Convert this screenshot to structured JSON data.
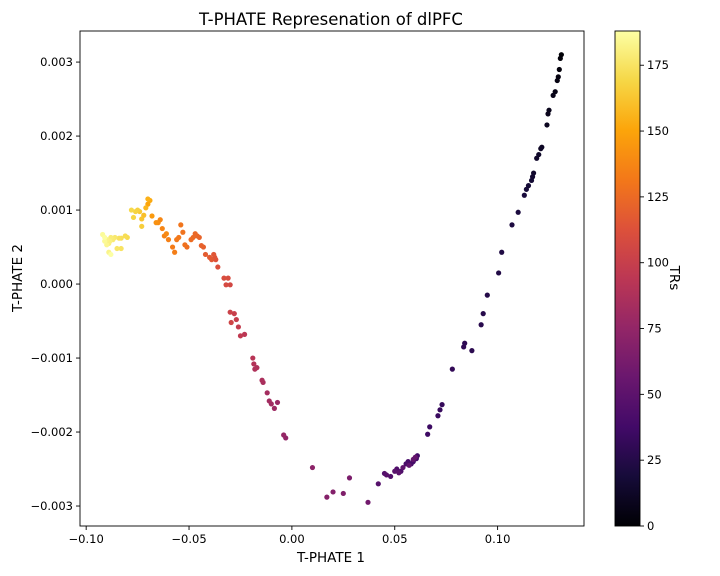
{
  "chart_data": {
    "type": "scatter",
    "title": "T-PHATE Represenation of dlPFC",
    "xlabel": "T-PHATE 1",
    "ylabel": "T-PHATE 2",
    "xlim": [
      -0.103,
      0.142
    ],
    "ylim": [
      -0.00327,
      0.00342
    ],
    "x_ticks": [
      -0.1,
      -0.05,
      0.0,
      0.05,
      0.1
    ],
    "x_tick_labels": [
      "−0.10",
      "−0.05",
      "0.00",
      "0.05",
      "0.10"
    ],
    "y_ticks": [
      -0.003,
      -0.002,
      -0.001,
      0.0,
      0.001,
      0.002,
      0.003
    ],
    "y_tick_labels": [
      "−0.003",
      "−0.002",
      "−0.001",
      "0.000",
      "0.001",
      "0.002",
      "0.003"
    ],
    "colormap": "inferno",
    "colorbar": {
      "label": "TRs",
      "range": [
        0,
        188
      ],
      "ticks": [
        0,
        25,
        50,
        75,
        100,
        125,
        150,
        175
      ],
      "tick_labels": [
        "0",
        "25",
        "50",
        "75",
        "100",
        "125",
        "150",
        "175"
      ]
    },
    "points": [
      [
        0.131,
        0.0031,
        1
      ],
      [
        0.1305,
        0.00305,
        2
      ],
      [
        0.13,
        0.0029,
        3
      ],
      [
        0.1295,
        0.0028,
        4
      ],
      [
        0.129,
        0.00275,
        5
      ],
      [
        0.128,
        0.0026,
        6
      ],
      [
        0.127,
        0.00255,
        7
      ],
      [
        0.125,
        0.00235,
        8
      ],
      [
        0.1245,
        0.0023,
        9
      ],
      [
        0.124,
        0.00215,
        10
      ],
      [
        0.1215,
        0.00185,
        11
      ],
      [
        0.121,
        0.00183,
        12
      ],
      [
        0.12,
        0.00175,
        13
      ],
      [
        0.119,
        0.0017,
        14
      ],
      [
        0.1175,
        0.0015,
        15
      ],
      [
        0.117,
        0.00145,
        16
      ],
      [
        0.1165,
        0.0014,
        17
      ],
      [
        0.115,
        0.00133,
        18
      ],
      [
        0.114,
        0.00128,
        19
      ],
      [
        0.113,
        0.0012,
        20
      ],
      [
        0.11,
        0.00097,
        21
      ],
      [
        0.107,
        0.0008,
        22
      ],
      [
        0.102,
        0.00043,
        23
      ],
      [
        0.1005,
        0.00015,
        24
      ],
      [
        0.095,
        -0.00015,
        25
      ],
      [
        0.093,
        -0.0004,
        26
      ],
      [
        0.092,
        -0.00055,
        27
      ],
      [
        0.0875,
        -0.0009,
        28
      ],
      [
        0.084,
        -0.0008,
        29
      ],
      [
        0.0835,
        -0.00085,
        30
      ],
      [
        0.078,
        -0.00115,
        31
      ],
      [
        0.073,
        -0.00163,
        32
      ],
      [
        0.072,
        -0.0017,
        33
      ],
      [
        0.071,
        -0.00178,
        34
      ],
      [
        0.067,
        -0.00193,
        35
      ],
      [
        0.066,
        -0.00203,
        36
      ],
      [
        0.061,
        -0.00232,
        37
      ],
      [
        0.0605,
        -0.00236,
        38
      ],
      [
        0.059,
        -0.0024,
        39
      ],
      [
        0.058,
        -0.00243,
        40
      ],
      [
        0.0565,
        -0.0024,
        41
      ],
      [
        0.0555,
        -0.00243,
        42
      ],
      [
        0.053,
        -0.00253,
        43
      ],
      [
        0.051,
        -0.0025,
        44
      ],
      [
        0.048,
        -0.0026,
        45
      ],
      [
        0.045,
        -0.00256,
        46
      ],
      [
        0.042,
        -0.0027,
        47
      ],
      [
        0.046,
        -0.00258,
        48
      ],
      [
        0.05,
        -0.00253,
        49
      ],
      [
        0.052,
        -0.00255,
        50
      ],
      [
        0.054,
        -0.00248,
        51
      ],
      [
        0.057,
        -0.00245,
        52
      ],
      [
        0.059,
        -0.00237,
        53
      ],
      [
        0.06,
        -0.00234,
        54
      ],
      [
        0.037,
        -0.00295,
        60
      ],
      [
        0.028,
        -0.00262,
        64
      ],
      [
        0.025,
        -0.00283,
        66
      ],
      [
        0.02,
        -0.00281,
        68
      ],
      [
        0.017,
        -0.00288,
        69
      ],
      [
        0.01,
        -0.00248,
        72
      ],
      [
        -0.003,
        -0.00208,
        74
      ],
      [
        -0.004,
        -0.00204,
        76
      ],
      [
        -0.007,
        -0.0016,
        78
      ],
      [
        -0.0085,
        -0.00168,
        80
      ],
      [
        -0.01,
        -0.00162,
        81
      ],
      [
        -0.011,
        -0.00158,
        82
      ],
      [
        -0.012,
        -0.00147,
        83
      ],
      [
        -0.014,
        -0.00133,
        85
      ],
      [
        -0.0145,
        -0.0013,
        86
      ],
      [
        -0.017,
        -0.00113,
        87
      ],
      [
        -0.018,
        -0.00115,
        88
      ],
      [
        -0.0185,
        -0.00108,
        90
      ],
      [
        -0.019,
        -0.001,
        92
      ],
      [
        -0.023,
        -0.00068,
        94
      ],
      [
        -0.025,
        -0.0007,
        96
      ],
      [
        -0.026,
        -0.00058,
        98
      ],
      [
        -0.027,
        -0.00048,
        99
      ],
      [
        -0.028,
        -0.0004,
        100
      ],
      [
        -0.03,
        -0.00038,
        102
      ],
      [
        -0.0295,
        -0.00052,
        104
      ],
      [
        -0.03,
        -1e-05,
        106
      ],
      [
        -0.032,
        -1e-05,
        108
      ],
      [
        -0.031,
        8e-05,
        109
      ],
      [
        -0.033,
        8e-05,
        110
      ],
      [
        -0.036,
        0.00023,
        111
      ],
      [
        -0.037,
        0.00033,
        113
      ],
      [
        -0.0375,
        0.00036,
        114
      ],
      [
        -0.038,
        0.0004,
        115
      ],
      [
        -0.039,
        0.00033,
        116
      ],
      [
        -0.04,
        0.00036,
        117
      ],
      [
        -0.042,
        0.0004,
        118
      ],
      [
        -0.043,
        0.0005,
        120
      ],
      [
        -0.044,
        0.00052,
        121
      ],
      [
        -0.045,
        0.00063,
        122
      ],
      [
        -0.046,
        0.00065,
        123
      ],
      [
        -0.047,
        0.00068,
        124
      ],
      [
        -0.048,
        0.00063,
        125
      ],
      [
        -0.049,
        0.0006,
        126
      ],
      [
        -0.051,
        0.0005,
        127
      ],
      [
        -0.052,
        0.00053,
        128
      ],
      [
        -0.053,
        0.0007,
        129
      ],
      [
        -0.054,
        0.0008,
        130
      ],
      [
        -0.055,
        0.00063,
        131
      ],
      [
        -0.056,
        0.0006,
        132
      ],
      [
        -0.058,
        0.0005,
        133
      ],
      [
        -0.057,
        0.00043,
        134
      ],
      [
        -0.06,
        0.0006,
        135
      ],
      [
        -0.062,
        0.00065,
        136
      ],
      [
        -0.063,
        0.00075,
        137
      ],
      [
        -0.064,
        0.00087,
        138
      ],
      [
        -0.061,
        0.00068,
        139
      ],
      [
        -0.065,
        0.00083,
        140
      ],
      [
        -0.066,
        0.00083,
        142
      ],
      [
        -0.068,
        0.00092,
        146
      ],
      [
        -0.07,
        0.00108,
        150
      ],
      [
        -0.069,
        0.00113,
        152
      ],
      [
        -0.07,
        0.00115,
        155
      ],
      [
        -0.071,
        0.00103,
        157
      ],
      [
        -0.072,
        0.00093,
        160
      ],
      [
        -0.073,
        0.00088,
        162
      ],
      [
        -0.074,
        0.00098,
        164
      ],
      [
        -0.073,
        0.00078,
        166
      ],
      [
        -0.075,
        0.001,
        167
      ],
      [
        -0.076,
        0.00098,
        168
      ],
      [
        -0.077,
        0.0009,
        169
      ],
      [
        -0.078,
        0.001,
        170
      ],
      [
        -0.08,
        0.00063,
        171
      ],
      [
        -0.081,
        0.00065,
        172
      ],
      [
        -0.083,
        0.00062,
        173
      ],
      [
        -0.084,
        0.00062,
        174
      ],
      [
        -0.083,
        0.00048,
        175
      ],
      [
        -0.085,
        0.00048,
        176
      ],
      [
        -0.086,
        0.00063,
        177
      ],
      [
        -0.087,
        0.0006,
        178
      ],
      [
        -0.088,
        0.00063,
        179
      ],
      [
        -0.089,
        0.00055,
        180
      ],
      [
        -0.0885,
        0.00058,
        181
      ],
      [
        -0.09,
        0.0006,
        182
      ],
      [
        -0.089,
        0.00043,
        183
      ],
      [
        -0.09,
        0.00053,
        184
      ],
      [
        -0.091,
        0.00058,
        185
      ],
      [
        -0.092,
        0.00067,
        186
      ],
      [
        -0.091,
        0.00063,
        187
      ],
      [
        -0.088,
        0.0004,
        188
      ]
    ]
  }
}
